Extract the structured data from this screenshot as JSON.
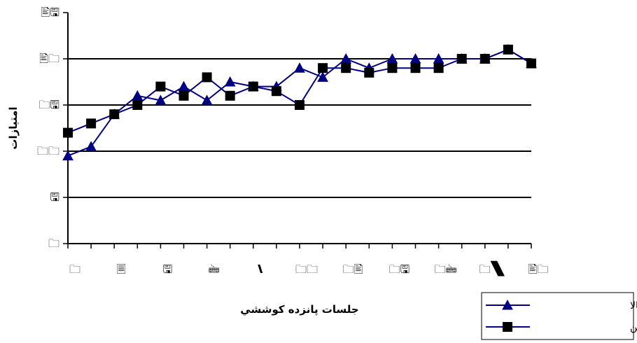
{
  "chart_data": {
    "type": "line",
    "xlabel": "جلسات پانزده كوششي",
    "ylabel": "امتيازات",
    "x_tick_labels": [
      "1",
      "2",
      "3",
      "4",
      "5",
      "6",
      "7",
      "8",
      "9",
      "10"
    ],
    "y_tick_labels": [
      "0",
      "10",
      "20",
      "30",
      "40",
      "50"
    ],
    "x_tick_glyphs": [
      "🗀",
      "🗏",
      "🖫",
      "🖮",
      "🙽",
      "🗀🗀",
      "🗀🖹",
      "🗀🖫",
      "🗀🖮",
      "🗀🙽",
      "🖹🗀"
    ],
    "y_tick_glyphs": [
      "🗀",
      "🖫",
      "🗀🗀",
      "🗀🖫",
      "🖹🗀",
      "🖹🖫"
    ],
    "ylim": [
      0,
      50
    ],
    "xlim": [
      1,
      21
    ],
    "grid": "horizontal",
    "legend_position": "bottom-right",
    "x": [
      1,
      2,
      3,
      4,
      5,
      6,
      7,
      8,
      9,
      10,
      11,
      12,
      13,
      14,
      15,
      16,
      17,
      18,
      19,
      20,
      21
    ],
    "series": [
      {
        "name": "گروه انگيزشی بالا",
        "marker": "triangle",
        "color": "#000080",
        "values": [
          19,
          21,
          28,
          32,
          31,
          34,
          31,
          35,
          34,
          34,
          38,
          36,
          40,
          38,
          40,
          40,
          40,
          40,
          40,
          42,
          39
        ]
      },
      {
        "name": "گروه ا نگيزشی پايين",
        "marker": "square",
        "color": "#000080",
        "values": [
          24,
          26,
          28,
          30,
          34,
          32,
          36,
          32,
          34,
          33,
          30,
          38,
          38,
          37,
          38,
          38,
          38,
          40,
          40,
          42,
          39
        ]
      }
    ]
  }
}
